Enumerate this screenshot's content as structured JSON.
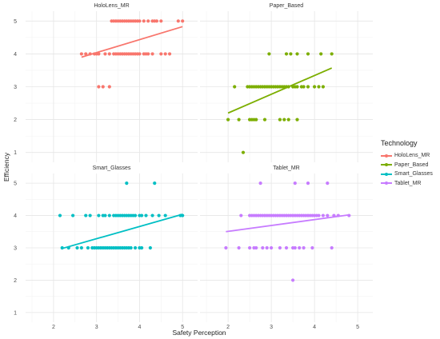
{
  "chart_data": {
    "type": "scatter",
    "xlabel": "Safety Perception",
    "ylabel": "Efficiency",
    "xlim": [
      1.35,
      5.35
    ],
    "ylim": [
      0.7,
      5.3
    ],
    "x_ticks": [
      "2",
      "3",
      "4",
      "5"
    ],
    "y_ticks": [
      "1",
      "2",
      "3",
      "4",
      "5"
    ],
    "grid": true,
    "legend": {
      "title": "Technology",
      "position": "right",
      "entries": [
        "HoloLens_MR",
        "Paper_Based",
        "Smart_Glasses",
        "Tablet_MR"
      ]
    },
    "panels": [
      {
        "title": "HoloLens_MR",
        "color": "#F8766D",
        "points": [
          [
            2.65,
            4
          ],
          [
            2.75,
            4
          ],
          [
            2.85,
            4
          ],
          [
            2.95,
            4
          ],
          [
            3.0,
            4
          ],
          [
            3.05,
            4
          ],
          [
            3.2,
            4
          ],
          [
            3.3,
            4
          ],
          [
            3.4,
            4
          ],
          [
            3.45,
            4
          ],
          [
            3.5,
            4
          ],
          [
            3.55,
            4
          ],
          [
            3.6,
            4
          ],
          [
            3.65,
            4
          ],
          [
            3.7,
            4
          ],
          [
            3.75,
            4
          ],
          [
            3.8,
            4
          ],
          [
            3.85,
            4
          ],
          [
            3.9,
            4
          ],
          [
            3.95,
            4
          ],
          [
            4.0,
            4
          ],
          [
            4.1,
            4
          ],
          [
            4.15,
            4
          ],
          [
            4.2,
            4
          ],
          [
            4.3,
            4
          ],
          [
            4.5,
            4
          ],
          [
            4.6,
            4
          ],
          [
            4.7,
            4
          ],
          [
            3.35,
            5
          ],
          [
            3.4,
            5
          ],
          [
            3.45,
            5
          ],
          [
            3.5,
            5
          ],
          [
            3.55,
            5
          ],
          [
            3.6,
            5
          ],
          [
            3.65,
            5
          ],
          [
            3.7,
            5
          ],
          [
            3.75,
            5
          ],
          [
            3.8,
            5
          ],
          [
            3.85,
            5
          ],
          [
            3.9,
            5
          ],
          [
            3.95,
            5
          ],
          [
            4.0,
            5
          ],
          [
            4.1,
            5
          ],
          [
            4.2,
            5
          ],
          [
            4.3,
            5
          ],
          [
            4.35,
            5
          ],
          [
            4.4,
            5
          ],
          [
            4.5,
            5
          ],
          [
            4.9,
            5
          ],
          [
            5.0,
            5
          ],
          [
            3.05,
            3
          ],
          [
            3.15,
            3
          ],
          [
            3.3,
            3
          ]
        ],
        "fit": [
          [
            2.65,
            3.9
          ],
          [
            5.0,
            4.83
          ]
        ]
      },
      {
        "title": "Paper_Based",
        "color": "#7CAE00",
        "points": [
          [
            2.0,
            2
          ],
          [
            2.25,
            2
          ],
          [
            2.5,
            2
          ],
          [
            2.55,
            2
          ],
          [
            2.6,
            2
          ],
          [
            2.65,
            2
          ],
          [
            2.85,
            2
          ],
          [
            3.2,
            2
          ],
          [
            3.3,
            2
          ],
          [
            3.4,
            2
          ],
          [
            3.6,
            2
          ],
          [
            2.35,
            1
          ],
          [
            2.15,
            3
          ],
          [
            2.45,
            3
          ],
          [
            2.5,
            3
          ],
          [
            2.55,
            3
          ],
          [
            2.6,
            3
          ],
          [
            2.65,
            3
          ],
          [
            2.7,
            3
          ],
          [
            2.75,
            3
          ],
          [
            2.8,
            3
          ],
          [
            2.85,
            3
          ],
          [
            2.9,
            3
          ],
          [
            2.95,
            3
          ],
          [
            3.0,
            3
          ],
          [
            3.05,
            3
          ],
          [
            3.1,
            3
          ],
          [
            3.15,
            3
          ],
          [
            3.2,
            3
          ],
          [
            3.25,
            3
          ],
          [
            3.3,
            3
          ],
          [
            3.35,
            3
          ],
          [
            3.4,
            3
          ],
          [
            3.5,
            3
          ],
          [
            3.55,
            3
          ],
          [
            3.6,
            3
          ],
          [
            3.7,
            3
          ],
          [
            3.75,
            3
          ],
          [
            3.85,
            3
          ],
          [
            4.0,
            3
          ],
          [
            4.1,
            3
          ],
          [
            4.2,
            3
          ],
          [
            2.95,
            4
          ],
          [
            3.35,
            4
          ],
          [
            3.45,
            4
          ],
          [
            3.6,
            4
          ],
          [
            3.85,
            4
          ],
          [
            4.15,
            4
          ],
          [
            4.4,
            4
          ]
        ],
        "fit": [
          [
            2.0,
            2.2
          ],
          [
            4.4,
            3.57
          ]
        ]
      },
      {
        "title": "Smart_Glasses",
        "color": "#00BFC4",
        "points": [
          [
            2.15,
            4
          ],
          [
            2.45,
            4
          ],
          [
            2.75,
            4
          ],
          [
            2.85,
            4
          ],
          [
            3.05,
            4
          ],
          [
            3.15,
            4
          ],
          [
            3.2,
            4
          ],
          [
            3.3,
            4
          ],
          [
            3.4,
            4
          ],
          [
            3.45,
            4
          ],
          [
            3.5,
            4
          ],
          [
            3.55,
            4
          ],
          [
            3.6,
            4
          ],
          [
            3.65,
            4
          ],
          [
            3.7,
            4
          ],
          [
            3.75,
            4
          ],
          [
            3.8,
            4
          ],
          [
            3.85,
            4
          ],
          [
            3.9,
            4
          ],
          [
            4.0,
            4
          ],
          [
            4.05,
            4
          ],
          [
            4.15,
            4
          ],
          [
            4.3,
            4
          ],
          [
            4.45,
            4
          ],
          [
            4.6,
            4
          ],
          [
            4.95,
            4
          ],
          [
            5.0,
            4
          ],
          [
            2.2,
            3
          ],
          [
            2.35,
            3
          ],
          [
            2.55,
            3
          ],
          [
            2.65,
            3
          ],
          [
            2.8,
            3
          ],
          [
            2.9,
            3
          ],
          [
            2.95,
            3
          ],
          [
            3.0,
            3
          ],
          [
            3.05,
            3
          ],
          [
            3.1,
            3
          ],
          [
            3.15,
            3
          ],
          [
            3.2,
            3
          ],
          [
            3.25,
            3
          ],
          [
            3.3,
            3
          ],
          [
            3.35,
            3
          ],
          [
            3.4,
            3
          ],
          [
            3.45,
            3
          ],
          [
            3.5,
            3
          ],
          [
            3.55,
            3
          ],
          [
            3.6,
            3
          ],
          [
            3.65,
            3
          ],
          [
            3.7,
            3
          ],
          [
            3.75,
            3
          ],
          [
            3.8,
            3
          ],
          [
            3.9,
            3
          ],
          [
            4.0,
            3
          ],
          [
            4.05,
            3
          ],
          [
            4.25,
            3
          ],
          [
            3.7,
            5
          ],
          [
            4.35,
            5
          ]
        ],
        "fit": [
          [
            2.2,
            2.98
          ],
          [
            5.0,
            4.04
          ]
        ]
      },
      {
        "title": "Tablet_MR",
        "color": "#C77CFF",
        "points": [
          [
            2.3,
            4
          ],
          [
            2.5,
            4
          ],
          [
            2.55,
            4
          ],
          [
            2.6,
            4
          ],
          [
            2.65,
            4
          ],
          [
            2.7,
            4
          ],
          [
            2.75,
            4
          ],
          [
            2.8,
            4
          ],
          [
            2.85,
            4
          ],
          [
            2.9,
            4
          ],
          [
            2.95,
            4
          ],
          [
            3.0,
            4
          ],
          [
            3.05,
            4
          ],
          [
            3.1,
            4
          ],
          [
            3.15,
            4
          ],
          [
            3.2,
            4
          ],
          [
            3.25,
            4
          ],
          [
            3.3,
            4
          ],
          [
            3.35,
            4
          ],
          [
            3.4,
            4
          ],
          [
            3.45,
            4
          ],
          [
            3.5,
            4
          ],
          [
            3.55,
            4
          ],
          [
            3.6,
            4
          ],
          [
            3.65,
            4
          ],
          [
            3.7,
            4
          ],
          [
            3.75,
            4
          ],
          [
            3.8,
            4
          ],
          [
            3.85,
            4
          ],
          [
            3.9,
            4
          ],
          [
            3.95,
            4
          ],
          [
            4.0,
            4
          ],
          [
            4.05,
            4
          ],
          [
            4.1,
            4
          ],
          [
            4.2,
            4
          ],
          [
            4.3,
            4
          ],
          [
            4.45,
            4
          ],
          [
            4.55,
            4
          ],
          [
            4.8,
            4
          ],
          [
            1.95,
            3
          ],
          [
            2.25,
            3
          ],
          [
            2.5,
            3
          ],
          [
            2.6,
            3
          ],
          [
            2.65,
            3
          ],
          [
            2.8,
            3
          ],
          [
            2.9,
            3
          ],
          [
            3.0,
            3
          ],
          [
            3.2,
            3
          ],
          [
            3.35,
            3
          ],
          [
            3.5,
            3
          ],
          [
            3.55,
            3
          ],
          [
            3.65,
            3
          ],
          [
            3.75,
            3
          ],
          [
            3.95,
            3
          ],
          [
            4.4,
            3
          ],
          [
            2.75,
            5
          ],
          [
            3.55,
            5
          ],
          [
            3.85,
            5
          ],
          [
            4.3,
            5
          ],
          [
            3.5,
            2
          ]
        ],
        "fit": [
          [
            1.95,
            3.5
          ],
          [
            4.8,
            4.02
          ]
        ]
      }
    ]
  }
}
